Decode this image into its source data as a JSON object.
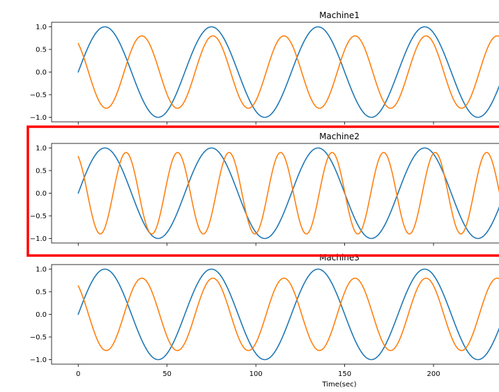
{
  "chart_data": [
    {
      "type": "line",
      "title": "Machine1",
      "xlabel": "",
      "ylabel": "",
      "xlim": [
        -15,
        240
      ],
      "ylim": [
        -1.1,
        1.1
      ],
      "yticks": [
        1.0,
        0.5,
        0.0,
        -0.5,
        -1.0
      ],
      "ytick_labels": [
        "1.0",
        "0.5",
        "0.0",
        "−0.5",
        "−1.0"
      ],
      "xticks": [
        0,
        50,
        100,
        150,
        200
      ],
      "grid": false,
      "series": [
        {
          "color": "#1f77b4",
          "function": "sin",
          "amplitude": 1.0,
          "period": 60,
          "phase": 0,
          "x_start": 0,
          "x_end": 240
        },
        {
          "color": "#ff7f0e",
          "function": "cos",
          "amplitude": 0.8,
          "period": 40,
          "phase": 0.66,
          "x_start": 0,
          "x_end": 240
        }
      ]
    },
    {
      "type": "line",
      "title": "Machine2",
      "xlabel": "",
      "ylabel": "",
      "xlim": [
        -15,
        240
      ],
      "ylim": [
        -1.1,
        1.1
      ],
      "yticks": [
        1.0,
        0.5,
        0.0,
        -0.5,
        -1.0
      ],
      "ytick_labels": [
        "1.0",
        "0.5",
        "0.0",
        "−0.5",
        "−1.0"
      ],
      "xticks": [
        0,
        50,
        100,
        150,
        200
      ],
      "grid": false,
      "highlighted": true,
      "series": [
        {
          "color": "#1f77b4",
          "function": "sin",
          "amplitude": 1.0,
          "period": 60,
          "phase": 0,
          "x_start": 0,
          "x_end": 240
        },
        {
          "color": "#ff7f0e",
          "function": "cos",
          "amplitude": 0.9,
          "period": 29,
          "phase": 0.45,
          "x_start": 0,
          "x_end": 240
        }
      ]
    },
    {
      "type": "line",
      "title": "Machine3",
      "xlabel": "Time(sec)",
      "ylabel": "",
      "xlim": [
        -15,
        240
      ],
      "ylim": [
        -1.1,
        1.1
      ],
      "yticks": [
        1.0,
        0.5,
        0.0,
        -0.5,
        -1.0
      ],
      "ytick_labels": [
        "1.0",
        "0.5",
        "0.0",
        "−0.5",
        "−1.0"
      ],
      "xticks": [
        0,
        50,
        100,
        150,
        200
      ],
      "xtick_labels": [
        "0",
        "50",
        "100",
        "150",
        "200"
      ],
      "grid": false,
      "series": [
        {
          "color": "#1f77b4",
          "function": "sin",
          "amplitude": 1.0,
          "period": 60,
          "phase": 0,
          "x_start": 0,
          "x_end": 240
        },
        {
          "color": "#ff7f0e",
          "function": "cos",
          "amplitude": 0.8,
          "period": 40,
          "phase": 0.66,
          "x_start": 0,
          "x_end": 240
        }
      ]
    }
  ],
  "colors": {
    "highlight": "#ff0000",
    "series_blue": "#1f77b4",
    "series_orange": "#ff7f0e"
  }
}
